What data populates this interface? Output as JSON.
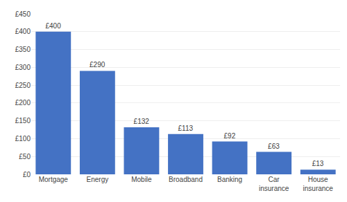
{
  "chart_data": {
    "type": "bar",
    "categories": [
      "Mortgage",
      "Energy",
      "Mobile",
      "Broadband",
      "Banking",
      "Car\ninsurance",
      "House\ninsurance"
    ],
    "values": [
      400,
      290,
      132,
      113,
      92,
      63,
      13
    ],
    "value_labels": [
      "£400",
      "£290",
      "£132",
      "£113",
      "£92",
      "£63",
      "£13"
    ],
    "data_labels": true,
    "color": "#4472C4",
    "ylim": [
      0,
      450
    ],
    "yticks": [
      {
        "value": 0,
        "label": "£0"
      },
      {
        "value": 50,
        "label": "£50"
      },
      {
        "value": 100,
        "label": "£100"
      },
      {
        "value": 150,
        "label": "£150"
      },
      {
        "value": 200,
        "label": "£200"
      },
      {
        "value": 250,
        "label": "£250"
      },
      {
        "value": 300,
        "label": "£300"
      },
      {
        "value": 350,
        "label": "£350"
      },
      {
        "value": 400,
        "label": "£400"
      },
      {
        "value": 450,
        "label": "£450"
      }
    ],
    "grid": true
  }
}
